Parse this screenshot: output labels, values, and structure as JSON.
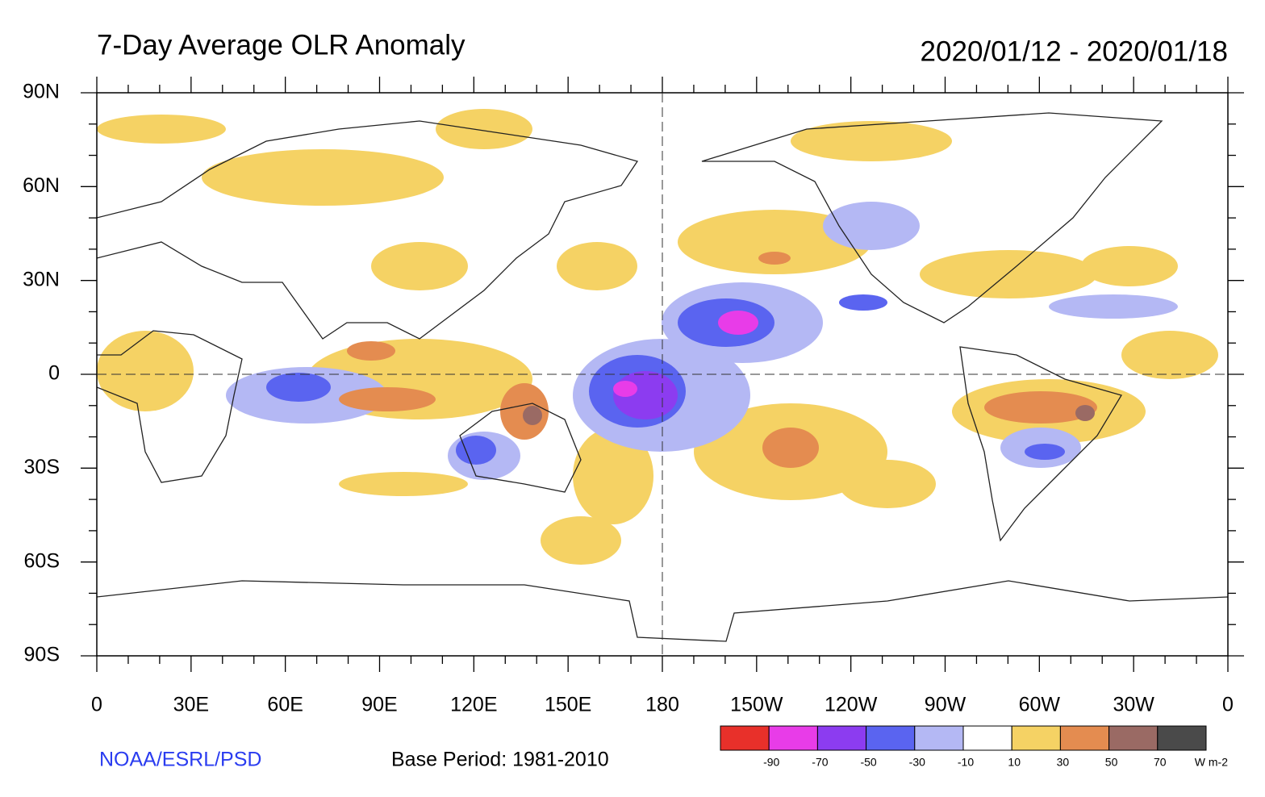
{
  "title": "7-Day Average OLR Anomaly",
  "date_range": "2020/01/12 - 2020/01/18",
  "lat_labels": [
    "90N",
    "60N",
    "30N",
    "0",
    "30S",
    "60S",
    "90S"
  ],
  "lon_labels": [
    "0",
    "30E",
    "60E",
    "90E",
    "120E",
    "150E",
    "180",
    "150W",
    "120W",
    "90W",
    "60W",
    "30W",
    "0"
  ],
  "colorbar": {
    "colors": [
      "#e8302a",
      "#e83ce8",
      "#8c3cf0",
      "#5a64f0",
      "#b4b8f4",
      "#ffffff",
      "#f5d264",
      "#e48c50",
      "#9a6a64",
      "#4a4a4a"
    ],
    "labels": [
      -90,
      -70,
      -50,
      -30,
      -10,
      10,
      30,
      50,
      70
    ],
    "unit": "W m-2"
  },
  "credit": "NOAA/ESRL/PSD",
  "base_period": "Base Period: 1981-2010"
}
